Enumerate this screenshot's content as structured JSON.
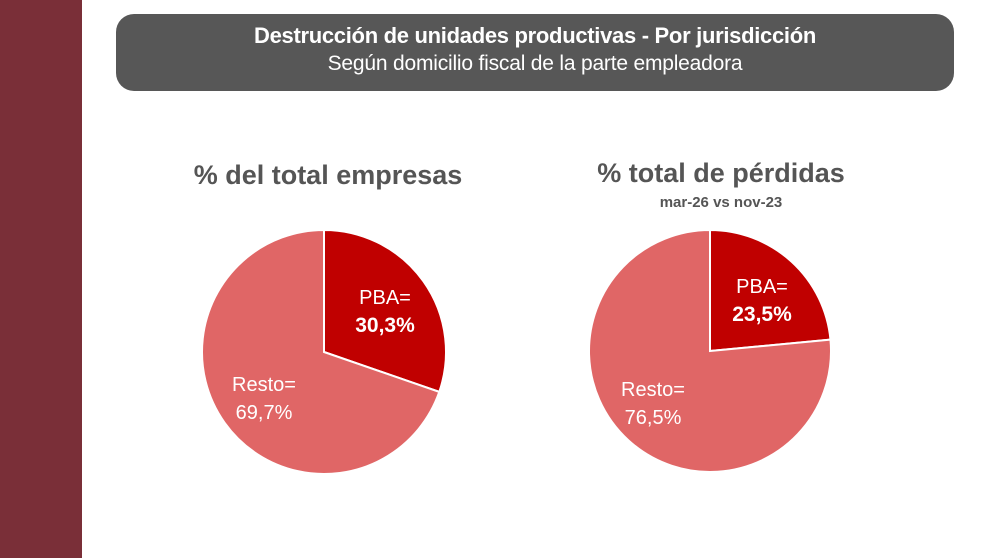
{
  "header": {
    "title": "Destrucción de unidades productivas - Por jurisdicción",
    "subtitle": "Según domicilio fiscal de la parte empleadora"
  },
  "colors": {
    "sidebar": "#7a2f38",
    "header_bg": "#575757",
    "pba": "#c00000",
    "resto": "#e06666",
    "title_text": "#555555"
  },
  "chart_data": [
    {
      "type": "pie",
      "title": "% del total empresas",
      "subtitle": "",
      "slices": [
        {
          "label": "PBA=",
          "value": 30.3,
          "value_label": "30,3%",
          "color": "#c00000"
        },
        {
          "label": "Resto=",
          "value": 69.7,
          "value_label": "69,7%",
          "color": "#e06666"
        }
      ],
      "start": "12 o'clock, clockwise"
    },
    {
      "type": "pie",
      "title": "% total de pérdidas",
      "subtitle": "mar-26 vs nov-23",
      "slices": [
        {
          "label": "PBA=",
          "value": 23.5,
          "value_label": "23,5%",
          "color": "#c00000"
        },
        {
          "label": "Resto=",
          "value": 76.5,
          "value_label": "76,5%",
          "color": "#e06666"
        }
      ],
      "start": "12 o'clock, clockwise"
    }
  ]
}
